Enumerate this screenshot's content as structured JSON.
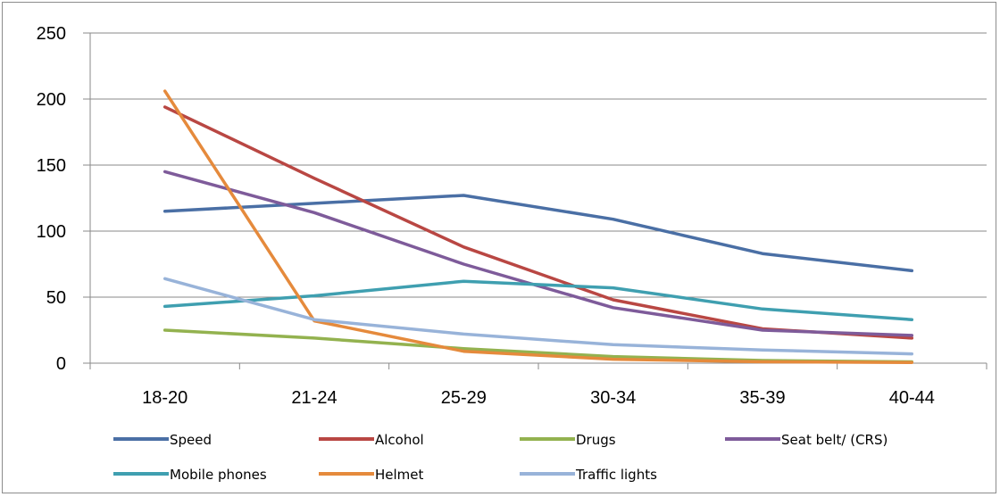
{
  "chart_data": {
    "type": "line",
    "categories": [
      "18-20",
      "21-24",
      "25-29",
      "30-34",
      "35-39",
      "40-44"
    ],
    "ylim": [
      0,
      250
    ],
    "yticks": [
      "0",
      "50",
      "100",
      "150",
      "200",
      "250"
    ],
    "grid": true,
    "legend_placement": "bottom",
    "series": [
      {
        "name": "Speed",
        "color": "#4a6fa5",
        "values": [
          115,
          121,
          127,
          109,
          83,
          70
        ]
      },
      {
        "name": "Alcohol",
        "color": "#b94743",
        "values": [
          194,
          140,
          88,
          48,
          26,
          19
        ]
      },
      {
        "name": "Drugs",
        "color": "#93b24f",
        "values": [
          25,
          19,
          11,
          5,
          2,
          1
        ]
      },
      {
        "name": "Seat belt/ (CRS)",
        "color": "#7e5b9a",
        "values": [
          145,
          114,
          75,
          42,
          25,
          21
        ]
      },
      {
        "name": "Mobile phones",
        "color": "#3f9fb0",
        "values": [
          43,
          51,
          62,
          57,
          41,
          33
        ]
      },
      {
        "name": "Helmet",
        "color": "#e58a3c",
        "values": [
          206,
          32,
          9,
          3,
          1,
          0.5
        ]
      },
      {
        "name": "Traffic lights",
        "color": "#98b3d9",
        "values": [
          64,
          33,
          22,
          14,
          10,
          7
        ]
      }
    ]
  }
}
